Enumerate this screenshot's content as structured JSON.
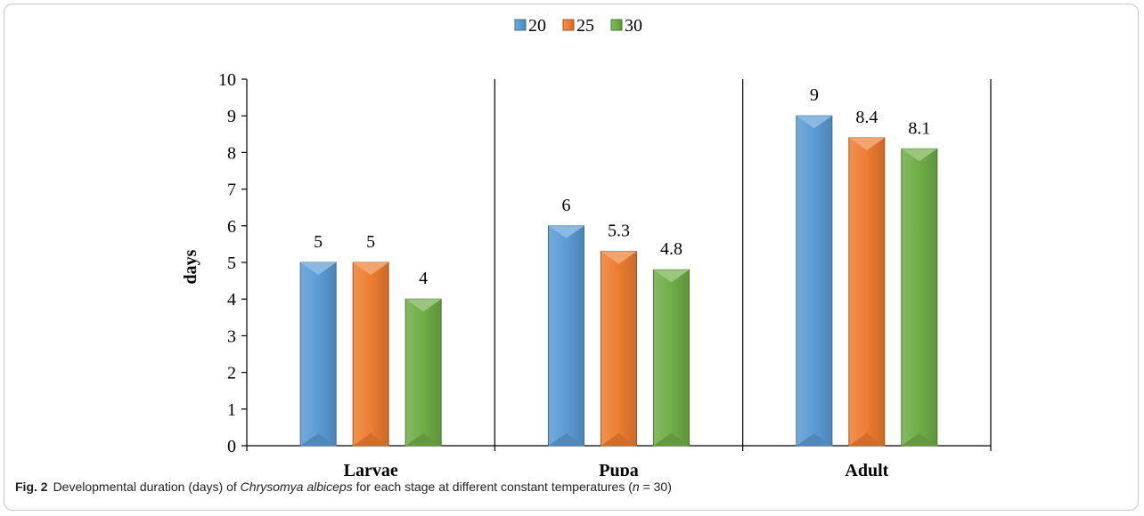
{
  "chart_data": {
    "type": "bar",
    "categories": [
      "Larvae",
      "Pupa",
      "Adult"
    ],
    "series": [
      {
        "name": "20",
        "values": [
          5,
          6,
          9
        ],
        "color": "#5b9bd5"
      },
      {
        "name": "25",
        "values": [
          5,
          5.3,
          8.4
        ],
        "color": "#ed7d31"
      },
      {
        "name": "30",
        "values": [
          4,
          4.8,
          8.1
        ],
        "color": "#70ad47"
      }
    ],
    "data_labels": [
      [
        "5",
        "6",
        "9"
      ],
      [
        "5",
        "5.3",
        "8.4"
      ],
      [
        "4",
        "4.8",
        "8.1"
      ]
    ],
    "title": "",
    "xlabel": "",
    "ylabel": "days",
    "ylim": [
      0,
      10
    ],
    "yticks": [
      0,
      1,
      2,
      3,
      4,
      5,
      6,
      7,
      8,
      9,
      10
    ],
    "legend_position": "top-center",
    "grid": false
  },
  "caption": {
    "label": "Fig. 2",
    "text_before": "Developmental duration (days) of ",
    "species": "Chrysomya albiceps",
    "text_middle": " for each stage at different constant temperatures (",
    "n_symbol": "n",
    "text_after": " = 30)"
  }
}
